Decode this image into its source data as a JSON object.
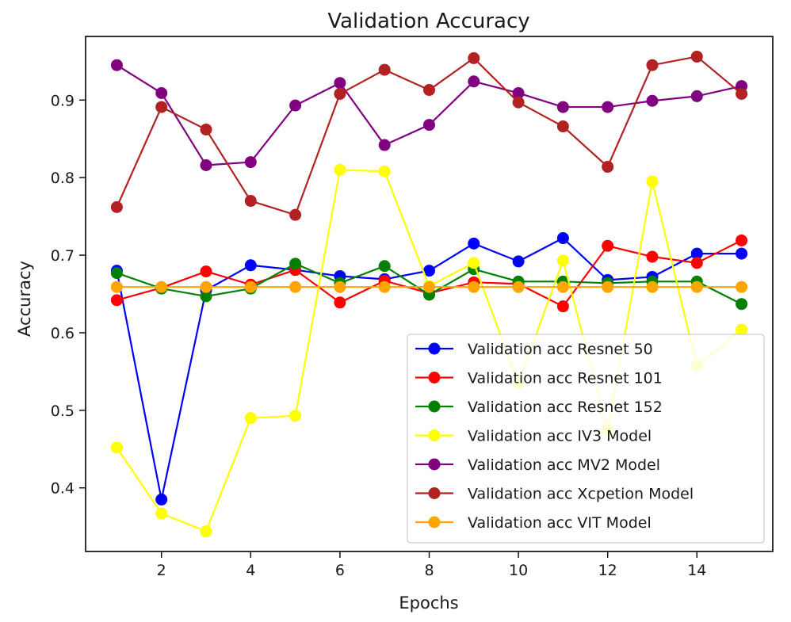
{
  "chart_data": {
    "type": "line",
    "title": "Validation Accuracy",
    "xlabel": "Epochs",
    "ylabel": "Accuracy",
    "x": [
      1,
      2,
      3,
      4,
      5,
      6,
      7,
      8,
      9,
      10,
      11,
      12,
      13,
      14,
      15
    ],
    "xlim": [
      0.3,
      15.7
    ],
    "ylim": [
      0.318,
      0.982
    ],
    "xticks": [
      2,
      4,
      6,
      8,
      10,
      12,
      14
    ],
    "yticks": [
      0.4,
      0.5,
      0.6,
      0.7,
      0.8,
      0.9
    ],
    "grid": false,
    "legend_position": "lower right",
    "series": [
      {
        "name": "Validation acc Resnet 50",
        "color": "#0000ff",
        "values": [
          0.68,
          0.385,
          0.655,
          0.687,
          0.681,
          0.673,
          0.669,
          0.68,
          0.715,
          0.692,
          0.722,
          0.668,
          0.672,
          0.702,
          0.702
        ]
      },
      {
        "name": "Validation acc Resnet 101",
        "color": "#ff0000",
        "values": [
          0.642,
          0.658,
          0.679,
          0.662,
          0.681,
          0.639,
          0.667,
          0.651,
          0.665,
          0.663,
          0.634,
          0.712,
          0.698,
          0.69,
          0.719
        ]
      },
      {
        "name": "Validation acc Resnet 152",
        "color": "#008000",
        "values": [
          0.677,
          0.657,
          0.647,
          0.657,
          0.689,
          0.664,
          0.686,
          0.649,
          0.682,
          0.666,
          0.666,
          0.664,
          0.666,
          0.666,
          0.637
        ]
      },
      {
        "name": "Validation acc IV3 Model",
        "color": "#ffff00",
        "values": [
          0.452,
          0.367,
          0.344,
          0.49,
          0.493,
          0.81,
          0.808,
          0.66,
          0.69,
          0.535,
          0.693,
          0.475,
          0.795,
          0.557,
          0.604
        ]
      },
      {
        "name": "Validation acc MV2 Model",
        "color": "#800080",
        "values": [
          0.945,
          0.909,
          0.816,
          0.82,
          0.893,
          0.922,
          0.842,
          0.868,
          0.924,
          0.909,
          0.891,
          0.891,
          0.899,
          0.905,
          0.918
        ]
      },
      {
        "name": "Validation acc Xcpetion Model",
        "color": "#b22222",
        "values": [
          0.762,
          0.891,
          0.862,
          0.77,
          0.752,
          0.908,
          0.939,
          0.913,
          0.954,
          0.897,
          0.866,
          0.814,
          0.945,
          0.956,
          0.908
        ]
      },
      {
        "name": "Validation acc VIT Model",
        "color": "#ffa500",
        "values": [
          0.659,
          0.659,
          0.659,
          0.659,
          0.659,
          0.659,
          0.659,
          0.659,
          0.659,
          0.659,
          0.659,
          0.659,
          0.659,
          0.659,
          0.659
        ]
      }
    ]
  }
}
